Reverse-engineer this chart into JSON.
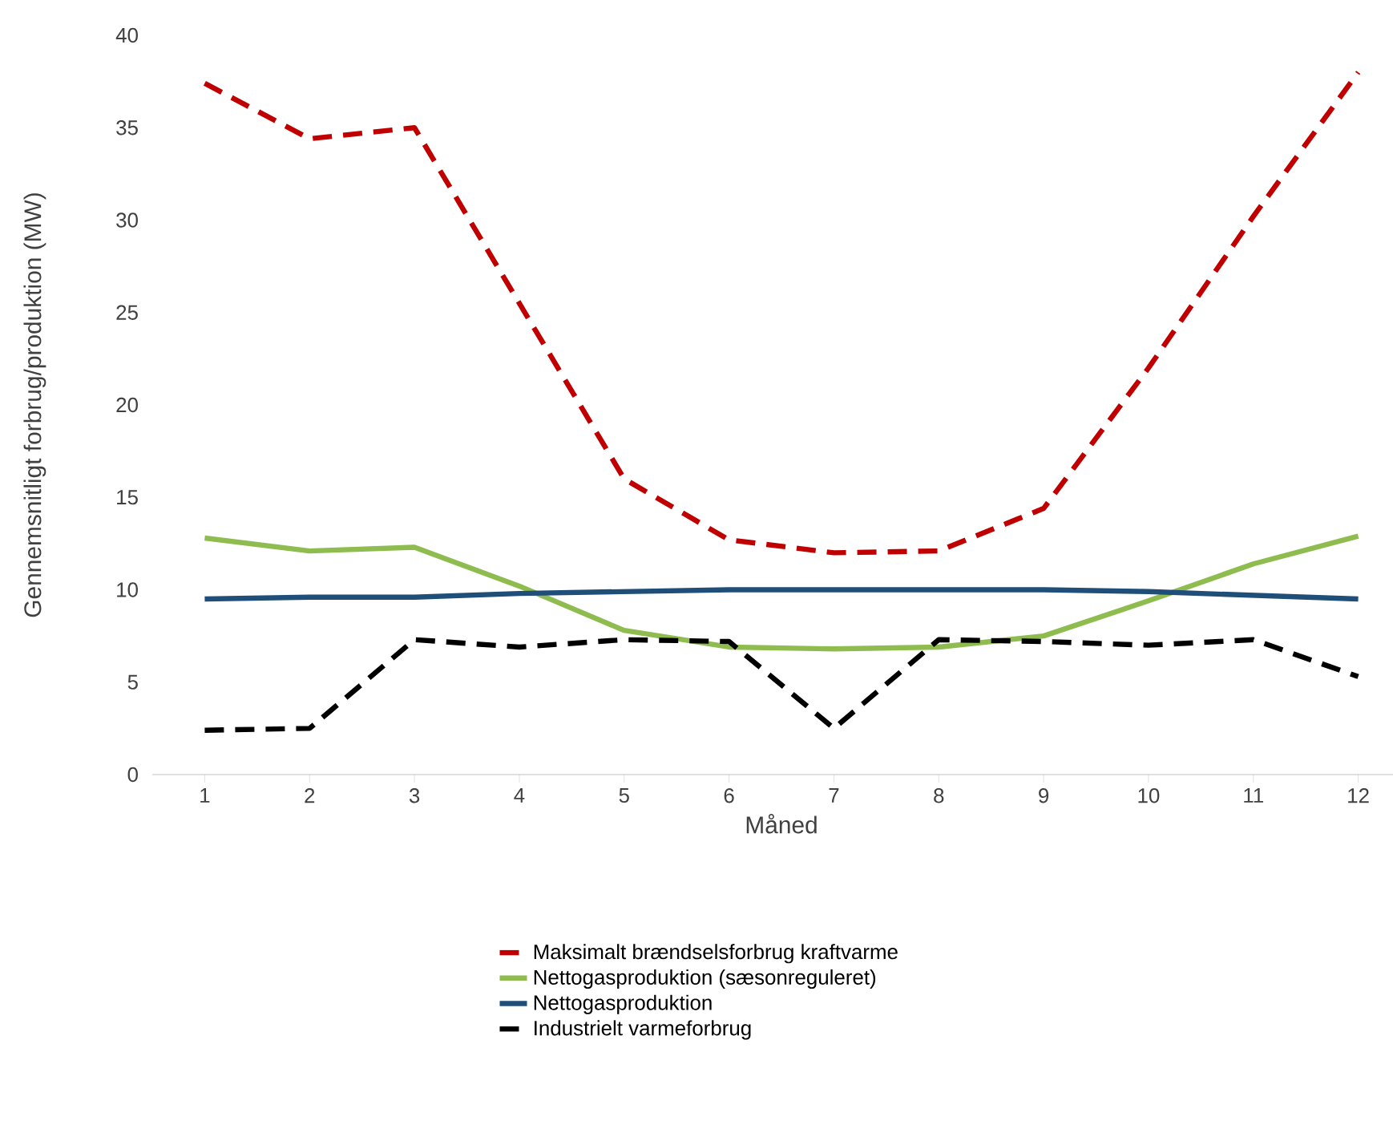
{
  "chart_data": {
    "type": "line",
    "xlabel": "Måned",
    "ylabel": "Gennemsnitligt forbrug/produktion (MW)",
    "categories": [
      "1",
      "2",
      "3",
      "4",
      "5",
      "6",
      "7",
      "8",
      "9",
      "10",
      "11",
      "12"
    ],
    "ylim": [
      0,
      40
    ],
    "yticks": [
      0,
      5,
      10,
      15,
      20,
      25,
      30,
      35,
      40
    ],
    "grid": false,
    "legend": "bottom",
    "marker": "none",
    "series": [
      {
        "name": "Maksimalt brændselsforbrug kraftvarme",
        "color": "#c00000",
        "line_style": "dashed",
        "values": [
          37.4,
          34.4,
          35.0,
          25.5,
          16.0,
          12.7,
          12.0,
          12.1,
          14.4,
          22.0,
          30.2,
          38.0
        ]
      },
      {
        "name": "Nettogasproduktion (sæsonreguleret)",
        "color": "#8fbc4f",
        "line_style": "solid",
        "values": [
          12.8,
          12.1,
          12.3,
          10.2,
          7.8,
          6.9,
          6.8,
          6.9,
          7.5,
          9.4,
          11.4,
          12.9
        ]
      },
      {
        "name": "Nettogasproduktion",
        "color": "#1f4e79",
        "line_style": "solid",
        "values": [
          9.5,
          9.6,
          9.6,
          9.8,
          9.9,
          10.0,
          10.0,
          10.0,
          10.0,
          9.9,
          9.7,
          9.5
        ]
      },
      {
        "name": "Industrielt varmeforbrug",
        "color": "#000000",
        "line_style": "dashed",
        "values": [
          2.4,
          2.5,
          7.3,
          6.9,
          7.3,
          7.2,
          2.5,
          7.3,
          7.2,
          7.0,
          7.3,
          5.3
        ]
      }
    ]
  }
}
